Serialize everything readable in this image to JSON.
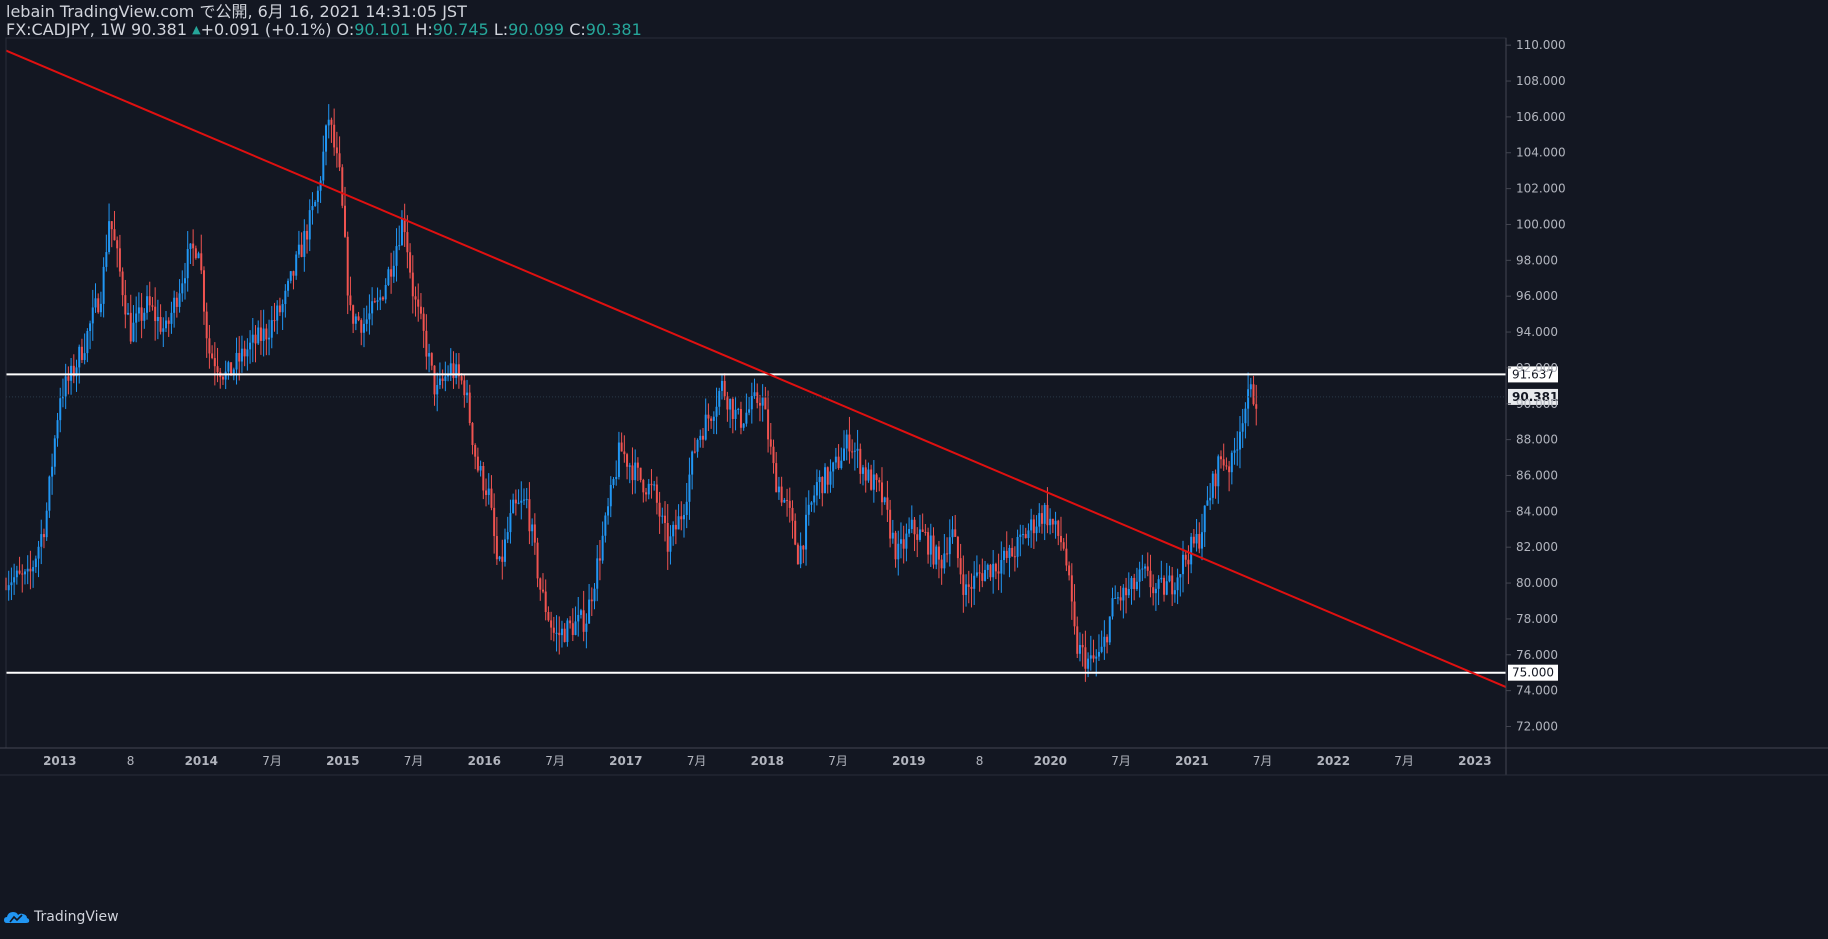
{
  "header": {
    "line1": "lebain TradingView.com で公開, 6月 16, 2021 14:31:05 JST",
    "symbol": "FX:CADJPY, 1W",
    "last": "90.381",
    "change_arrow": "▲",
    "change": "+0.091 (+0.1%)",
    "o_label": "O:",
    "o_val": "90.101",
    "h_label": "H:",
    "h_val": "90.745",
    "l_label": "L:",
    "l_val": "90.099",
    "c_label": "C:",
    "c_val": "90.381"
  },
  "footer": {
    "brand": "TradingView"
  },
  "colors": {
    "bg": "#131722",
    "up": "#2196f3",
    "down": "#ef5350",
    "trend": "#e01010",
    "hline": "#ffffff",
    "teal": "#26a69a"
  },
  "chart_data": {
    "type": "candlestick",
    "symbol": "FX:CADJPY",
    "interval": "1W",
    "ylim": [
      70.8,
      110.4
    ],
    "y_ticks": [
      72,
      74,
      76,
      78,
      80,
      82,
      84,
      86,
      88,
      90,
      92,
      94,
      96,
      98,
      100,
      102,
      104,
      106,
      108,
      110
    ],
    "y_tick_labels": [
      "72.000",
      "74.000",
      "76.000",
      "78.000",
      "80.000",
      "82.000",
      "84.000",
      "86.000",
      "88.000",
      "90.000",
      "92.000",
      "94.000",
      "96.000",
      "98.000",
      "100.000",
      "102.000",
      "104.000",
      "106.000",
      "108.000",
      "110.000"
    ],
    "xlim": [
      2012.62,
      2023.22
    ],
    "x_ticks": [
      {
        "t": 2013.0,
        "label": "2013"
      },
      {
        "t": 2013.5,
        "label": "8"
      },
      {
        "t": 2014.0,
        "label": "2014"
      },
      {
        "t": 2014.5,
        "label": "7月"
      },
      {
        "t": 2015.0,
        "label": "2015"
      },
      {
        "t": 2015.5,
        "label": "7月"
      },
      {
        "t": 2016.0,
        "label": "2016"
      },
      {
        "t": 2016.5,
        "label": "7月"
      },
      {
        "t": 2017.0,
        "label": "2017"
      },
      {
        "t": 2017.5,
        "label": "7月"
      },
      {
        "t": 2018.0,
        "label": "2018"
      },
      {
        "t": 2018.5,
        "label": "7月"
      },
      {
        "t": 2019.0,
        "label": "2019"
      },
      {
        "t": 2019.5,
        "label": "8"
      },
      {
        "t": 2020.0,
        "label": "2020"
      },
      {
        "t": 2020.5,
        "label": "7月"
      },
      {
        "t": 2021.0,
        "label": "2021"
      },
      {
        "t": 2021.5,
        "label": "7月"
      },
      {
        "t": 2022.0,
        "label": "2022"
      },
      {
        "t": 2022.5,
        "label": "7月"
      },
      {
        "t": 2023.0,
        "label": "2023"
      }
    ],
    "price_anchors": [
      [
        2012.62,
        80.3
      ],
      [
        2012.78,
        80.2
      ],
      [
        2012.9,
        83.5
      ],
      [
        2013.0,
        90.5
      ],
      [
        2013.08,
        91.5
      ],
      [
        2013.18,
        93.5
      ],
      [
        2013.3,
        96.5
      ],
      [
        2013.35,
        100.5
      ],
      [
        2013.42,
        97.5
      ],
      [
        2013.5,
        94.0
      ],
      [
        2013.62,
        95.5
      ],
      [
        2013.75,
        94.0
      ],
      [
        2013.9,
        98.0
      ],
      [
        2013.98,
        99.0
      ],
      [
        2014.05,
        93.0
      ],
      [
        2014.18,
        91.5
      ],
      [
        2014.32,
        93.0
      ],
      [
        2014.46,
        94.0
      ],
      [
        2014.58,
        95.5
      ],
      [
        2014.7,
        98.5
      ],
      [
        2014.82,
        101.5
      ],
      [
        2014.9,
        106.0
      ],
      [
        2014.98,
        102.5
      ],
      [
        2015.05,
        95.0
      ],
      [
        2015.15,
        94.5
      ],
      [
        2015.25,
        95.5
      ],
      [
        2015.35,
        98.0
      ],
      [
        2015.43,
        100.5
      ],
      [
        2015.5,
        96.0
      ],
      [
        2015.58,
        93.5
      ],
      [
        2015.66,
        90.5
      ],
      [
        2015.76,
        92.0
      ],
      [
        2015.86,
        91.0
      ],
      [
        2015.95,
        86.5
      ],
      [
        2016.03,
        85.0
      ],
      [
        2016.1,
        80.5
      ],
      [
        2016.2,
        84.0
      ],
      [
        2016.3,
        84.5
      ],
      [
        2016.4,
        79.5
      ],
      [
        2016.5,
        77.0
      ],
      [
        2016.6,
        77.5
      ],
      [
        2016.72,
        78.0
      ],
      [
        2016.85,
        83.0
      ],
      [
        2016.96,
        87.5
      ],
      [
        2017.08,
        86.0
      ],
      [
        2017.2,
        85.0
      ],
      [
        2017.3,
        82.0
      ],
      [
        2017.4,
        84.0
      ],
      [
        2017.5,
        88.0
      ],
      [
        2017.6,
        89.5
      ],
      [
        2017.68,
        91.0
      ],
      [
        2017.8,
        89.0
      ],
      [
        2017.96,
        90.5
      ],
      [
        2018.05,
        86.0
      ],
      [
        2018.15,
        84.0
      ],
      [
        2018.22,
        81.5
      ],
      [
        2018.35,
        85.5
      ],
      [
        2018.45,
        86.0
      ],
      [
        2018.58,
        88.0
      ],
      [
        2018.7,
        86.0
      ],
      [
        2018.8,
        85.0
      ],
      [
        2018.92,
        81.5
      ],
      [
        2019.02,
        83.0
      ],
      [
        2019.12,
        82.5
      ],
      [
        2019.22,
        81.0
      ],
      [
        2019.3,
        83.0
      ],
      [
        2019.4,
        79.5
      ],
      [
        2019.5,
        80.5
      ],
      [
        2019.6,
        81.0
      ],
      [
        2019.72,
        81.5
      ],
      [
        2019.85,
        83.0
      ],
      [
        2019.96,
        84.0
      ],
      [
        2020.1,
        82.0
      ],
      [
        2020.18,
        76.5
      ],
      [
        2020.28,
        75.5
      ],
      [
        2020.36,
        76.0
      ],
      [
        2020.45,
        79.0
      ],
      [
        2020.56,
        79.5
      ],
      [
        2020.66,
        80.5
      ],
      [
        2020.75,
        79.5
      ],
      [
        2020.86,
        80.0
      ],
      [
        2020.96,
        81.5
      ],
      [
        2021.05,
        82.5
      ],
      [
        2021.13,
        85.0
      ],
      [
        2021.2,
        87.0
      ],
      [
        2021.28,
        86.5
      ],
      [
        2021.36,
        89.5
      ],
      [
        2021.42,
        90.6
      ],
      [
        2021.46,
        90.38
      ]
    ],
    "horizontal_lines": [
      {
        "price": 91.637,
        "label": "91.637",
        "color": "#ffffff"
      },
      {
        "price": 75.0,
        "label": "75.000",
        "color": "#ffffff"
      }
    ],
    "trend_line": {
      "from": [
        2012.62,
        109.7
      ],
      "to": [
        2023.22,
        74.2
      ],
      "color": "#e01010"
    },
    "last_price": {
      "value": 90.381,
      "label": "90.381"
    }
  }
}
